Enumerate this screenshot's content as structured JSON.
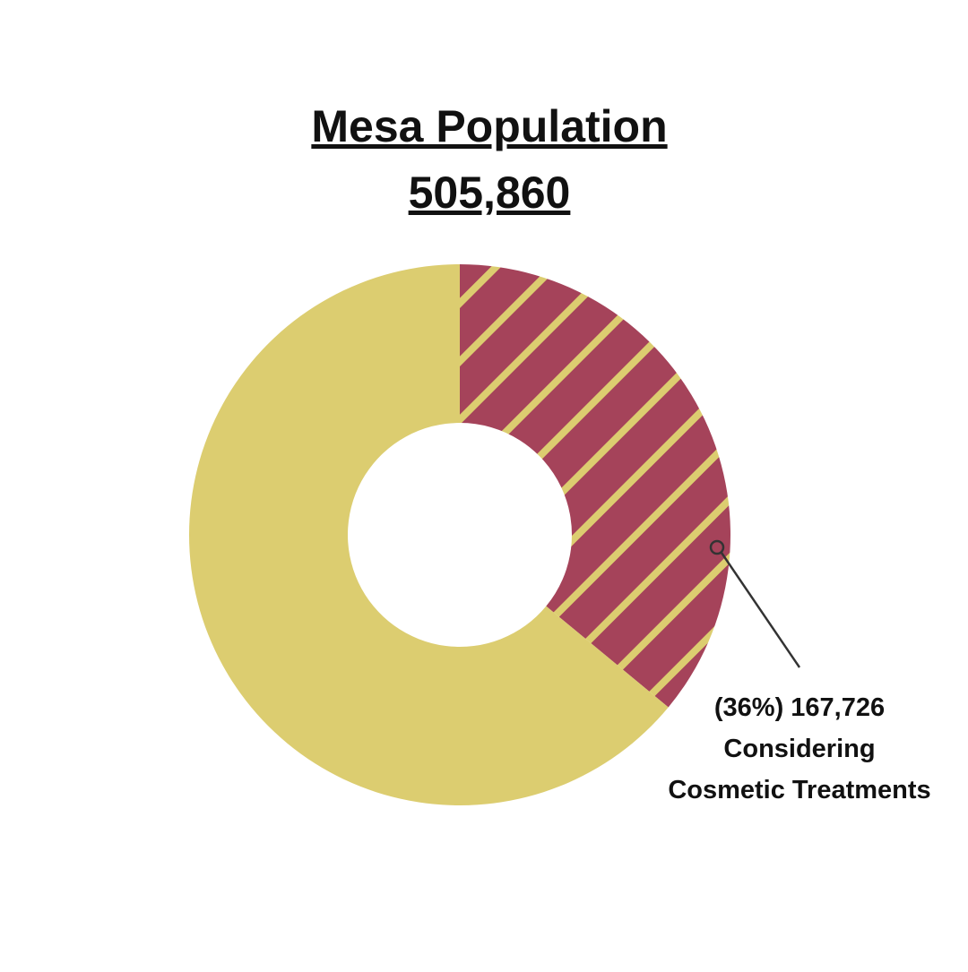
{
  "chart_data": {
    "type": "donut",
    "title": "Mesa Population",
    "subtitle": "505,860",
    "values": [
      36,
      64
    ],
    "colors": [
      "#a5435a",
      "#dccd70"
    ],
    "hatch": [
      true,
      false
    ],
    "annotation": [
      "(36%) 167,726",
      "Considering",
      "Cosmetic Treatments"
    ]
  }
}
